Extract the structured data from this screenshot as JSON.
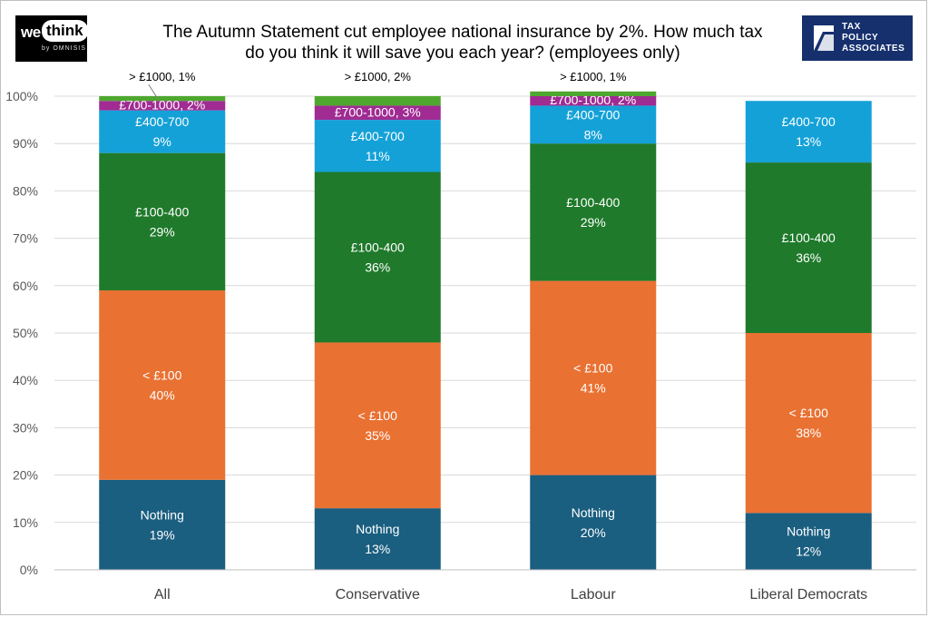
{
  "title": {
    "line1": "The Autumn Statement cut employee national insurance by 2%. How much tax",
    "line2": "do you think it will save you each year? (employees only)"
  },
  "logos": {
    "wethink": {
      "we": "we",
      "think": "think",
      "by": "by OMNISIS"
    },
    "tpa": {
      "line1": "TAX",
      "line2": "POLICY",
      "line3": "ASSOCIATES"
    }
  },
  "chart_data": {
    "type": "bar",
    "stacked": true,
    "categories": [
      "All",
      "Conservative",
      "Labour",
      "Liberal Democrats"
    ],
    "ylim": [
      0,
      100
    ],
    "yticks": [
      "0%",
      "10%",
      "20%",
      "30%",
      "40%",
      "50%",
      "60%",
      "70%",
      "80%",
      "90%",
      "100%"
    ],
    "grid": true,
    "series": [
      {
        "name": "Nothing",
        "color": "#1a5e80",
        "values": [
          19,
          13,
          20,
          12
        ]
      },
      {
        "name": "< £100",
        "color": "#e97132",
        "values": [
          40,
          35,
          41,
          38
        ]
      },
      {
        "name": "£100-400",
        "color": "#1f7a2b",
        "values": [
          29,
          36,
          29,
          36
        ]
      },
      {
        "name": "£400-700",
        "color": "#14a1d8",
        "values": [
          9,
          11,
          8,
          13
        ]
      },
      {
        "name": "£700-1000",
        "color": "#a02b93",
        "values": [
          2,
          3,
          2,
          0
        ]
      },
      {
        "name": "> £1000",
        "color": "#4ea72e",
        "values": [
          1,
          2,
          1,
          0
        ]
      }
    ],
    "labels": [
      [
        {
          "name": "Nothing",
          "value": "19%"
        },
        {
          "name": "< £100",
          "value": "40%"
        },
        {
          "name": "£100-400",
          "value": "29%"
        },
        {
          "name": "£400-700",
          "value": "9%"
        },
        {
          "text": "£700-1000, 2%"
        },
        {
          "text": "> £1000, 1%"
        }
      ],
      [
        {
          "name": "Nothing",
          "value": "13%"
        },
        {
          "name": "< £100",
          "value": "35%"
        },
        {
          "name": "£100-400",
          "value": "36%"
        },
        {
          "name": "£400-700",
          "value": "11%"
        },
        {
          "text": "£700-1000, 3%"
        },
        {
          "text": "> £1000, 2%"
        }
      ],
      [
        {
          "name": "Nothing",
          "value": "20%"
        },
        {
          "name": "< £100",
          "value": "41%"
        },
        {
          "name": "£100-400",
          "value": "29%"
        },
        {
          "name": "£400-700",
          "value": "8%"
        },
        {
          "text": "£700-1000, 2%"
        },
        {
          "text": "> £1000, 1%"
        }
      ],
      [
        {
          "name": "Nothing",
          "value": "12%"
        },
        {
          "name": "< £100",
          "value": "38%"
        },
        {
          "name": "£100-400",
          "value": "36%"
        },
        {
          "name": "£400-700",
          "value": "13%"
        }
      ]
    ]
  }
}
